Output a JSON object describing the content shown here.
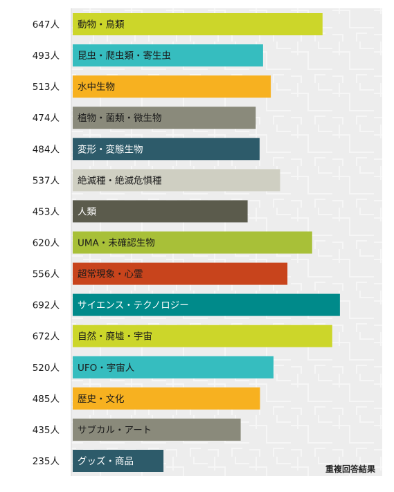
{
  "chart_data": {
    "type": "bar",
    "orientation": "horizontal",
    "categories": [
      "動物・鳥類",
      "昆虫・爬虫類・寄生虫",
      "水中生物",
      "植物・菌類・微生物",
      "変形・変態生物",
      "絶滅種・絶滅危惧種",
      "人類",
      "UMA・未確認生物",
      "超常現象・心霊",
      "サイエンス・テクノロジー",
      "自然・廃墟・宇宙",
      "UFO・宇宙人",
      "歴史・文化",
      "サブカル・アート",
      "グッズ・商品"
    ],
    "values": [
      647,
      493,
      513,
      474,
      484,
      537,
      453,
      620,
      556,
      692,
      672,
      520,
      485,
      435,
      235
    ],
    "value_labels": [
      "647人",
      "493人",
      "513人",
      "474人",
      "484人",
      "537人",
      "453人",
      "620人",
      "556人",
      "692人",
      "672人",
      "520人",
      "485人",
      "435人",
      "235人"
    ],
    "colors": [
      "#ccd62a",
      "#36bdbf",
      "#f7b120",
      "#8a8a7b",
      "#2d5b6a",
      "#cfcfc2",
      "#5b5b4c",
      "#a8c038",
      "#c8441c",
      "#008a8a",
      "#ccd62a",
      "#36bdbf",
      "#f7b120",
      "#8a8a7b",
      "#2d5b6a"
    ],
    "label_colors": [
      "#1a1a1a",
      "#1a1a1a",
      "#1a1a1a",
      "#1a1a1a",
      "#ffffff",
      "#1a1a1a",
      "#ffffff",
      "#1a1a1a",
      "#1a1a1a",
      "#ffffff",
      "#1a1a1a",
      "#1a1a1a",
      "#1a1a1a",
      "#1a1a1a",
      "#ffffff"
    ],
    "xlim": [
      0,
      800
    ],
    "note": "重複回答結果",
    "title": "",
    "xlabel": "",
    "ylabel": "",
    "grid": false,
    "legend": "none",
    "plot_background": "#eeeeee"
  }
}
